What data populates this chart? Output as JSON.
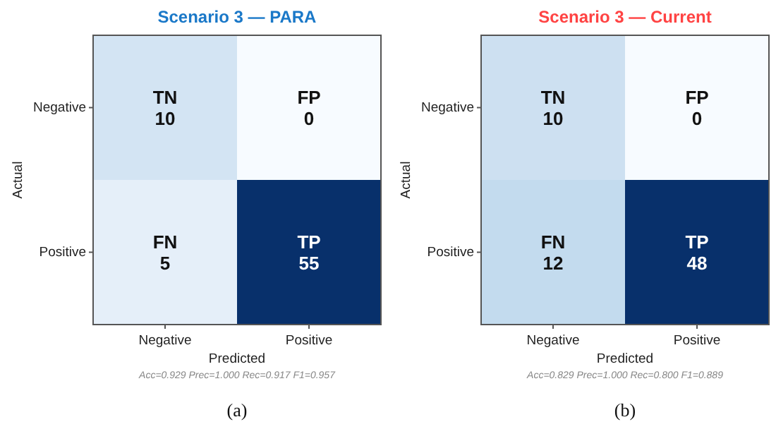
{
  "chart_data": [
    {
      "type": "heatmap",
      "title": "Scenario 3 — PARA",
      "xlabel": "Predicted",
      "ylabel": "Actual",
      "categories": [
        "Negative",
        "Positive"
      ],
      "y_categories": [
        "Negative",
        "Positive"
      ],
      "cells": [
        [
          10,
          0
        ],
        [
          5,
          55
        ]
      ],
      "data_labels": true,
      "annotations": [
        "Acc=0.929  Prec=1.000  Rec=0.917  F1=0.957",
        "(a)",
        "TN",
        "FP",
        "FN",
        "TP"
      ]
    },
    {
      "type": "heatmap",
      "title": "Scenario 3 — Current",
      "xlabel": "Predicted",
      "ylabel": "Actual",
      "categories": [
        "Negative",
        "Positive"
      ],
      "y_categories": [
        "Negative",
        "Positive"
      ],
      "cells": [
        [
          10,
          0
        ],
        [
          12,
          48
        ]
      ],
      "data_labels": true,
      "annotations": [
        "Acc=0.829  Prec=1.000  Rec=0.800  F1=0.889",
        "(b)",
        "TN",
        "FP",
        "FN",
        "TP"
      ]
    }
  ]
}
